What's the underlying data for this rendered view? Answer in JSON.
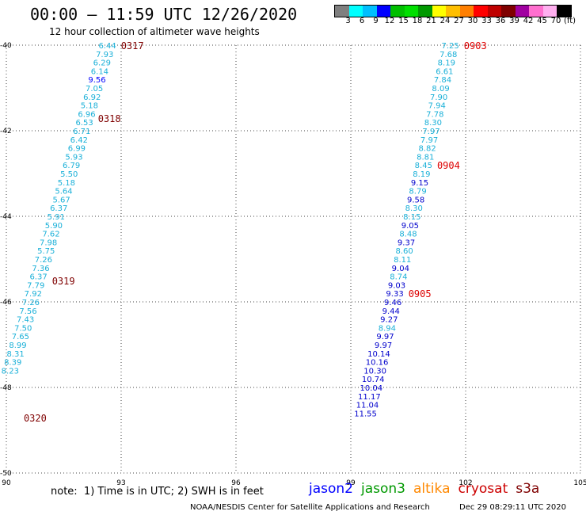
{
  "header": {
    "title": "00:00 – 11:59 UTC 12/26/2020",
    "subtitle": "12 hour collection of altimeter wave heights"
  },
  "color_scale": {
    "colors": [
      "#7f7f7f",
      "#00ffff",
      "#00bfff",
      "#0000ff",
      "#00bf00",
      "#00df00",
      "#009900",
      "#ffff00",
      "#ffbf00",
      "#ff7f00",
      "#ff0000",
      "#bf0000",
      "#7f0000",
      "#a000a0",
      "#ff6fcf",
      "#ffafef",
      "#000000"
    ],
    "labels": [
      "3",
      "6",
      "9",
      "12",
      "15",
      "18",
      "21",
      "24",
      "27",
      "30",
      "33",
      "36",
      "39",
      "42",
      "45",
      "70",
      "(ft)"
    ]
  },
  "note": "note:  1) Time is in UTC; 2) SWH is in feet",
  "satellites": [
    {
      "name": "jason2",
      "color": "#0000ff"
    },
    {
      "name": "jason3",
      "color": "#009900"
    },
    {
      "name": "altika",
      "color": "#ff8800"
    },
    {
      "name": "cryosat",
      "color": "#cc0000"
    },
    {
      "name": "s3a",
      "color": "#7f0000"
    }
  ],
  "footer": {
    "left": "NOAA/NESDIS Center for Satellite Applications and Research",
    "right": "Dec 29 08:29:11 UTC 2020"
  },
  "chart_data": {
    "type": "scatter",
    "xlim": [
      90,
      105
    ],
    "ylim": [
      -50,
      -40
    ],
    "x_ticks": [
      90,
      93,
      96,
      99,
      102,
      105
    ],
    "y_ticks": [
      -40,
      -42,
      -44,
      -46,
      -48,
      -50
    ],
    "grid": true,
    "tracks": [
      {
        "color": "#1ab0d8",
        "points": [
          {
            "x": 92.87,
            "y": -40.0,
            "v": "6.44",
            "c": "#1ab0d8"
          },
          {
            "x": 92.8,
            "y": -40.2,
            "v": "7.93",
            "c": "#1ab0d8"
          },
          {
            "x": 92.73,
            "y": -40.4,
            "v": "6.29",
            "c": "#1ab0d8"
          },
          {
            "x": 92.67,
            "y": -40.6,
            "v": "6.14",
            "c": "#1ab0d8"
          },
          {
            "x": 92.6,
            "y": -40.8,
            "v": "9.56",
            "c": "#0000ff"
          },
          {
            "x": 92.53,
            "y": -41.0,
            "v": "7.05",
            "c": "#1ab0d8"
          },
          {
            "x": 92.47,
            "y": -41.2,
            "v": "6.92",
            "c": "#1ab0d8"
          },
          {
            "x": 92.4,
            "y": -41.4,
            "v": "5.18",
            "c": "#1ab0d8"
          },
          {
            "x": 92.33,
            "y": -41.6,
            "v": "6.96",
            "c": "#1ab0d8"
          },
          {
            "x": 92.27,
            "y": -41.8,
            "v": "6.53",
            "c": "#1ab0d8"
          },
          {
            "x": 92.2,
            "y": -42.0,
            "v": "6.71",
            "c": "#1ab0d8"
          },
          {
            "x": 92.13,
            "y": -42.2,
            "v": "6.42",
            "c": "#1ab0d8"
          },
          {
            "x": 92.07,
            "y": -42.4,
            "v": "6.99",
            "c": "#1ab0d8"
          },
          {
            "x": 92.0,
            "y": -42.6,
            "v": "5.93",
            "c": "#1ab0d8"
          },
          {
            "x": 91.93,
            "y": -42.8,
            "v": "6.79",
            "c": "#1ab0d8"
          },
          {
            "x": 91.87,
            "y": -43.0,
            "v": "5.50",
            "c": "#1ab0d8"
          },
          {
            "x": 91.8,
            "y": -43.2,
            "v": "5.18",
            "c": "#1ab0d8"
          },
          {
            "x": 91.73,
            "y": -43.4,
            "v": "5.64",
            "c": "#1ab0d8"
          },
          {
            "x": 91.67,
            "y": -43.6,
            "v": "5.67",
            "c": "#1ab0d8"
          },
          {
            "x": 91.6,
            "y": -43.8,
            "v": "6.37",
            "c": "#1ab0d8"
          },
          {
            "x": 91.53,
            "y": -44.0,
            "v": "5.91",
            "c": "#1ab0d8"
          },
          {
            "x": 91.47,
            "y": -44.2,
            "v": "5.90",
            "c": "#1ab0d8"
          },
          {
            "x": 91.4,
            "y": -44.4,
            "v": "7.62",
            "c": "#1ab0d8"
          },
          {
            "x": 91.33,
            "y": -44.6,
            "v": "7.98",
            "c": "#1ab0d8"
          },
          {
            "x": 91.27,
            "y": -44.8,
            "v": "5.75",
            "c": "#1ab0d8"
          },
          {
            "x": 91.2,
            "y": -45.0,
            "v": "7.26",
            "c": "#1ab0d8"
          },
          {
            "x": 91.13,
            "y": -45.2,
            "v": "7.36",
            "c": "#1ab0d8"
          },
          {
            "x": 91.07,
            "y": -45.4,
            "v": "6.37",
            "c": "#1ab0d8"
          },
          {
            "x": 91.0,
            "y": -45.6,
            "v": "7.79",
            "c": "#1ab0d8"
          },
          {
            "x": 90.93,
            "y": -45.8,
            "v": "7.92",
            "c": "#1ab0d8"
          },
          {
            "x": 90.87,
            "y": -46.0,
            "v": "7.26",
            "c": "#1ab0d8"
          },
          {
            "x": 90.8,
            "y": -46.2,
            "v": "7.56",
            "c": "#1ab0d8"
          },
          {
            "x": 90.73,
            "y": -46.4,
            "v": "7.43",
            "c": "#1ab0d8"
          },
          {
            "x": 90.67,
            "y": -46.6,
            "v": "7.50",
            "c": "#1ab0d8"
          },
          {
            "x": 90.6,
            "y": -46.8,
            "v": "7.65",
            "c": "#1ab0d8"
          },
          {
            "x": 90.53,
            "y": -47.0,
            "v": "8.99",
            "c": "#1ab0d8"
          },
          {
            "x": 90.47,
            "y": -47.2,
            "v": "8.31",
            "c": "#1ab0d8"
          },
          {
            "x": 90.4,
            "y": -47.4,
            "v": "8.39",
            "c": "#1ab0d8"
          },
          {
            "x": 90.33,
            "y": -47.6,
            "v": "8.23",
            "c": "#1ab0d8"
          }
        ],
        "times": [
          {
            "y": -40.0,
            "t": "0317",
            "c": "#7f0000"
          },
          {
            "y": -41.7,
            "t": "0318",
            "c": "#7f0000"
          },
          {
            "y": -45.5,
            "t": "0319",
            "c": "#7f0000"
          },
          {
            "y": -48.7,
            "t": "0320",
            "c": "#7f0000"
          }
        ]
      },
      {
        "color": "#1ab0d8",
        "points": [
          {
            "x": 101.83,
            "y": -40.0,
            "v": "7.25",
            "c": "#1ab0d8"
          },
          {
            "x": 101.78,
            "y": -40.2,
            "v": "7.68",
            "c": "#1ab0d8"
          },
          {
            "x": 101.73,
            "y": -40.4,
            "v": "8.19",
            "c": "#1ab0d8"
          },
          {
            "x": 101.68,
            "y": -40.6,
            "v": "6.61",
            "c": "#1ab0d8"
          },
          {
            "x": 101.63,
            "y": -40.8,
            "v": "7.84",
            "c": "#1ab0d8"
          },
          {
            "x": 101.58,
            "y": -41.0,
            "v": "8.09",
            "c": "#1ab0d8"
          },
          {
            "x": 101.53,
            "y": -41.2,
            "v": "7.90",
            "c": "#1ab0d8"
          },
          {
            "x": 101.48,
            "y": -41.4,
            "v": "7.94",
            "c": "#1ab0d8"
          },
          {
            "x": 101.43,
            "y": -41.6,
            "v": "7.78",
            "c": "#1ab0d8"
          },
          {
            "x": 101.38,
            "y": -41.8,
            "v": "8.30",
            "c": "#1ab0d8"
          },
          {
            "x": 101.33,
            "y": -42.0,
            "v": "7.97",
            "c": "#1ab0d8"
          },
          {
            "x": 101.28,
            "y": -42.2,
            "v": "7.97",
            "c": "#1ab0d8"
          },
          {
            "x": 101.23,
            "y": -42.4,
            "v": "8.82",
            "c": "#1ab0d8"
          },
          {
            "x": 101.18,
            "y": -42.6,
            "v": "8.81",
            "c": "#1ab0d8"
          },
          {
            "x": 101.13,
            "y": -42.8,
            "v": "8.45",
            "c": "#1ab0d8"
          },
          {
            "x": 101.08,
            "y": -43.0,
            "v": "8.19",
            "c": "#1ab0d8"
          },
          {
            "x": 101.03,
            "y": -43.2,
            "v": "9.15",
            "c": "#0000cc"
          },
          {
            "x": 100.98,
            "y": -43.4,
            "v": "8.79",
            "c": "#1ab0d8"
          },
          {
            "x": 100.93,
            "y": -43.6,
            "v": "9.58",
            "c": "#0000cc"
          },
          {
            "x": 100.88,
            "y": -43.8,
            "v": "8.30",
            "c": "#1ab0d8"
          },
          {
            "x": 100.83,
            "y": -44.0,
            "v": "8.15",
            "c": "#1ab0d8"
          },
          {
            "x": 100.78,
            "y": -44.2,
            "v": "9.05",
            "c": "#0000cc"
          },
          {
            "x": 100.73,
            "y": -44.4,
            "v": "8.48",
            "c": "#1ab0d8"
          },
          {
            "x": 100.68,
            "y": -44.6,
            "v": "9.37",
            "c": "#0000cc"
          },
          {
            "x": 100.63,
            "y": -44.8,
            "v": "8.60",
            "c": "#1ab0d8"
          },
          {
            "x": 100.58,
            "y": -45.0,
            "v": "8.11",
            "c": "#1ab0d8"
          },
          {
            "x": 100.53,
            "y": -45.2,
            "v": "9.04",
            "c": "#0000cc"
          },
          {
            "x": 100.48,
            "y": -45.4,
            "v": "8.74",
            "c": "#1ab0d8"
          },
          {
            "x": 100.43,
            "y": -45.6,
            "v": "9.03",
            "c": "#0000cc"
          },
          {
            "x": 100.38,
            "y": -45.8,
            "v": "9.33",
            "c": "#0000cc"
          },
          {
            "x": 100.33,
            "y": -46.0,
            "v": "9.46",
            "c": "#0000cc"
          },
          {
            "x": 100.28,
            "y": -46.2,
            "v": "9.44",
            "c": "#0000cc"
          },
          {
            "x": 100.23,
            "y": -46.4,
            "v": "9.27",
            "c": "#0000cc"
          },
          {
            "x": 100.18,
            "y": -46.6,
            "v": "8.94",
            "c": "#1ab0d8"
          },
          {
            "x": 100.13,
            "y": -46.8,
            "v": "9.97",
            "c": "#0000cc"
          },
          {
            "x": 100.08,
            "y": -47.0,
            "v": "9.97",
            "c": "#0000cc"
          },
          {
            "x": 100.03,
            "y": -47.2,
            "v": "10.14",
            "c": "#0000cc"
          },
          {
            "x": 99.98,
            "y": -47.4,
            "v": "10.16",
            "c": "#0000cc"
          },
          {
            "x": 99.93,
            "y": -47.6,
            "v": "10.30",
            "c": "#0000cc"
          },
          {
            "x": 99.88,
            "y": -47.8,
            "v": "10.74",
            "c": "#0000cc"
          },
          {
            "x": 99.83,
            "y": -48.0,
            "v": "10.04",
            "c": "#0000cc"
          },
          {
            "x": 99.78,
            "y": -48.2,
            "v": "11.17",
            "c": "#0000cc"
          },
          {
            "x": 99.73,
            "y": -48.4,
            "v": "11.04",
            "c": "#0000cc"
          },
          {
            "x": 99.68,
            "y": -48.6,
            "v": "11.55",
            "c": "#0000cc"
          }
        ],
        "times": [
          {
            "y": -40.0,
            "t": "0903",
            "c": "#dd0000"
          },
          {
            "y": -42.8,
            "t": "0904",
            "c": "#dd0000"
          },
          {
            "y": -45.8,
            "t": "0905",
            "c": "#dd0000"
          }
        ]
      }
    ]
  }
}
